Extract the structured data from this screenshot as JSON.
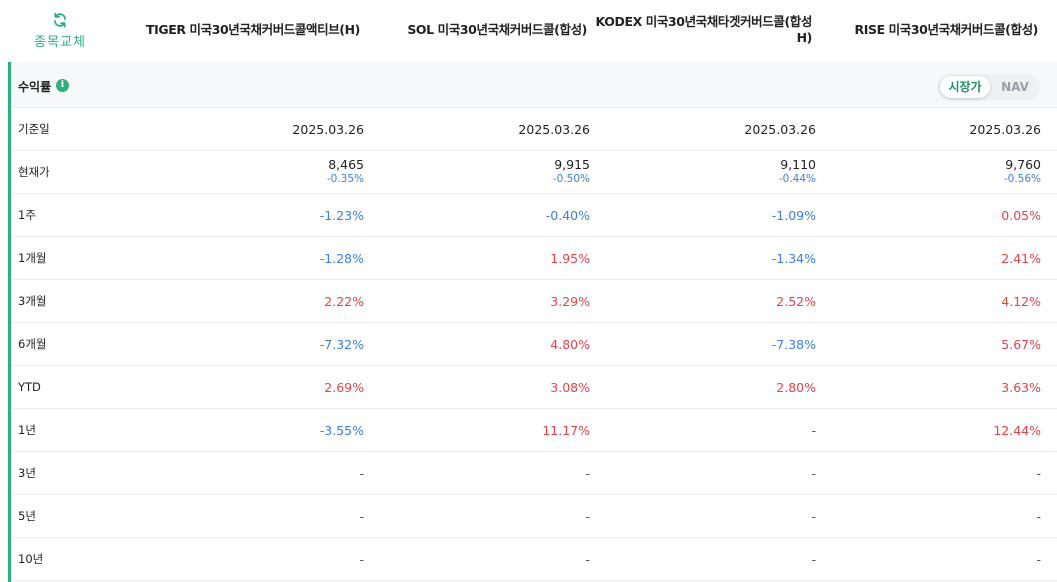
{
  "header": {
    "swap_label": "종목교체",
    "columns": [
      "TIGER 미국30년국채커버드콜액티브(H)",
      "SOL 미국30년국채커버드콜(합성)",
      "KODEX 미국30년국채타겟커버드콜(합성 H)",
      "RISE 미국30년국채커버드콜(합성)"
    ]
  },
  "returns": {
    "title": "수익률",
    "info_icon": "i",
    "toggle": {
      "active": "시장가",
      "inactive": "NAV"
    }
  },
  "rows": {
    "base_date": {
      "label": "기준일",
      "values": [
        "2025.03.26",
        "2025.03.26",
        "2025.03.26",
        "2025.03.26"
      ]
    },
    "price": {
      "label": "현재가",
      "values": [
        "8,465",
        "9,915",
        "9,110",
        "9,760"
      ],
      "changes": [
        "-0.35%",
        "-0.50%",
        "-0.44%",
        "-0.56%"
      ]
    },
    "w1": {
      "label": "1주",
      "values": [
        "-1.23%",
        "-0.40%",
        "-1.09%",
        "0.05%"
      ]
    },
    "m1": {
      "label": "1개월",
      "values": [
        "-1.28%",
        "1.95%",
        "-1.34%",
        "2.41%"
      ]
    },
    "m3": {
      "label": "3개월",
      "values": [
        "2.22%",
        "3.29%",
        "2.52%",
        "4.12%"
      ]
    },
    "m6": {
      "label": "6개월",
      "values": [
        "-7.32%",
        "4.80%",
        "-7.38%",
        "5.67%"
      ]
    },
    "ytd": {
      "label": "YTD",
      "values": [
        "2.69%",
        "3.08%",
        "2.80%",
        "3.63%"
      ]
    },
    "y1": {
      "label": "1년",
      "values": [
        "-3.55%",
        "11.17%",
        "-",
        "12.44%"
      ]
    },
    "y3": {
      "label": "3년",
      "values": [
        "-",
        "-",
        "-",
        "-"
      ]
    },
    "y5": {
      "label": "5년",
      "values": [
        "-",
        "-",
        "-",
        "-"
      ]
    },
    "y10": {
      "label": "10년",
      "values": [
        "-",
        "-",
        "-",
        "-"
      ]
    }
  },
  "colors": {
    "accent": "#2bb07e",
    "positive": "#e8424a",
    "negative": "#3b7ee8"
  },
  "icons": {
    "swap": "refresh-icon",
    "info": "info-icon"
  }
}
